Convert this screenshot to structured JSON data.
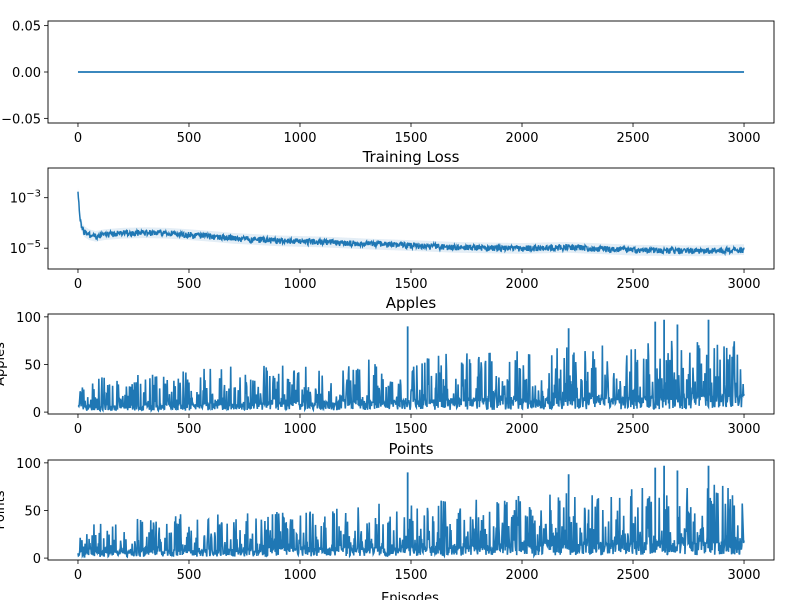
{
  "figure": {
    "xlabel": "Episodes",
    "color": "#1f77b4",
    "x_ticks": [
      "0",
      "500",
      "1000",
      "1500",
      "2000",
      "2500",
      "3000"
    ]
  },
  "chart_data": [
    {
      "type": "line",
      "title": "",
      "ylabel": "",
      "x_range": [
        0,
        3000
      ],
      "xlim": [
        -135,
        3135
      ],
      "ylim": [
        -0.055,
        0.055
      ],
      "y_ticks": [
        "−0.05",
        "0.00",
        "0.05"
      ],
      "y_tick_values": [
        -0.05,
        0.0,
        0.05
      ],
      "series": [
        {
          "description": "constant",
          "points": [
            [
              0,
              0.0
            ],
            [
              3000,
              0.0
            ]
          ]
        }
      ]
    },
    {
      "type": "line",
      "title": "Training Loss",
      "ylabel": "",
      "scale": "log",
      "x_range": [
        0,
        3000
      ],
      "xlim": [
        -135,
        3135
      ],
      "ylim": [
        1.5e-06,
        0.015
      ],
      "y_ticks": [
        "10−3",
        "10−5"
      ],
      "y_tick_values": [
        0.001,
        1e-05
      ],
      "series": [
        {
          "points": [
            [
              0,
              0.0015
            ],
            [
              5,
              0.0004
            ],
            [
              10,
              0.00012
            ],
            [
              20,
              6e-05
            ],
            [
              30,
              4.5e-05
            ],
            [
              50,
              3.5e-05
            ],
            [
              80,
              3e-05
            ],
            [
              120,
              3.5e-05
            ],
            [
              200,
              4e-05
            ],
            [
              300,
              4.2e-05
            ],
            [
              400,
              4e-05
            ],
            [
              500,
              3.5e-05
            ],
            [
              700,
              2.5e-05
            ],
            [
              900,
              2e-05
            ],
            [
              1100,
              1.8e-05
            ],
            [
              1300,
              1.5e-05
            ],
            [
              1500,
              1.3e-05
            ],
            [
              1700,
              1.1e-05
            ],
            [
              2000,
              1e-05
            ],
            [
              2200,
              1.1e-05
            ],
            [
              2500,
              8.5e-06
            ],
            [
              2800,
              8e-06
            ],
            [
              3000,
              9e-06
            ]
          ]
        }
      ]
    },
    {
      "type": "line",
      "title": "Apples",
      "ylabel": "Apples",
      "x_range": [
        0,
        3000
      ],
      "xlim": [
        -135,
        3135
      ],
      "ylim": [
        -2,
        103
      ],
      "y_ticks": [
        "0",
        "50",
        "100"
      ],
      "y_tick_values": [
        0,
        50,
        100
      ],
      "series": [
        {
          "style": "noisy",
          "baseline": [
            [
              0,
              6
            ],
            [
              1000,
              9
            ],
            [
              2000,
              12
            ],
            [
              3000,
              16
            ]
          ],
          "envelope": [
            [
              0,
              28
            ],
            [
              500,
              40
            ],
            [
              1000,
              42
            ],
            [
              1500,
              50
            ],
            [
              2000,
              55
            ],
            [
              2500,
              62
            ],
            [
              3000,
              66
            ]
          ],
          "peaks": [
            [
              1485,
              90
            ],
            [
              2210,
              88
            ],
            [
              2600,
              95
            ],
            [
              2640,
              97
            ],
            [
              2840,
              97
            ],
            [
              2700,
              92
            ]
          ]
        }
      ]
    },
    {
      "type": "line",
      "title": "Points",
      "ylabel": "Points",
      "x_range": [
        0,
        3000
      ],
      "xlim": [
        -135,
        3135
      ],
      "ylim": [
        -2,
        103
      ],
      "y_ticks": [
        "0",
        "50",
        "100"
      ],
      "y_tick_values": [
        0,
        50,
        100
      ],
      "series": [
        {
          "style": "noisy",
          "baseline": [
            [
              0,
              6
            ],
            [
              1000,
              9
            ],
            [
              2000,
              12
            ],
            [
              3000,
              16
            ]
          ],
          "envelope": [
            [
              0,
              28
            ],
            [
              500,
              40
            ],
            [
              1000,
              42
            ],
            [
              1500,
              50
            ],
            [
              2000,
              55
            ],
            [
              2500,
              62
            ],
            [
              3000,
              66
            ]
          ],
          "peaks": [
            [
              1485,
              90
            ],
            [
              2210,
              88
            ],
            [
              2600,
              95
            ],
            [
              2640,
              97
            ],
            [
              2840,
              97
            ],
            [
              2700,
              92
            ]
          ]
        }
      ]
    }
  ]
}
